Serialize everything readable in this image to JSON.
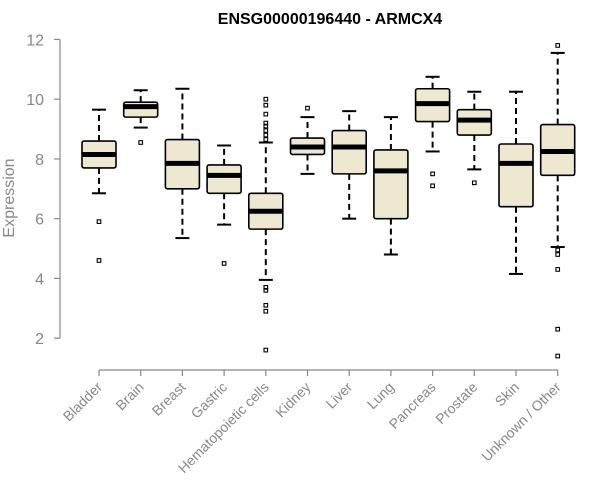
{
  "chart_data": {
    "type": "boxplot",
    "title": "ENSG00000196440 - ARMCX4",
    "xlabel": "",
    "ylabel": "Expression",
    "ylim": [
      1.0,
      12.25
    ],
    "yticks": [
      2,
      4,
      6,
      8,
      10,
      12
    ],
    "grid": false,
    "box_fill": "#eee8d0",
    "categories": [
      "Bladder",
      "Brain",
      "Breast",
      "Gastric",
      "Hematopoietic cells",
      "Kidney",
      "Liver",
      "Lung",
      "Pancreas",
      "Prostate",
      "Skin",
      "Unknown / Other"
    ],
    "series": [
      {
        "name": "Bladder",
        "whisker_low": 6.85,
        "q1": 7.7,
        "median": 8.15,
        "q3": 8.6,
        "whisker_high": 9.65,
        "outliers": [
          5.9,
          4.6
        ]
      },
      {
        "name": "Brain",
        "whisker_low": 9.05,
        "q1": 9.4,
        "median": 9.75,
        "q3": 9.9,
        "whisker_high": 10.3,
        "outliers": [
          8.55
        ]
      },
      {
        "name": "Breast",
        "whisker_low": 5.35,
        "q1": 7.0,
        "median": 7.85,
        "q3": 8.65,
        "whisker_high": 10.35,
        "outliers": []
      },
      {
        "name": "Gastric",
        "whisker_low": 5.8,
        "q1": 6.85,
        "median": 7.45,
        "q3": 7.8,
        "whisker_high": 8.45,
        "outliers": [
          4.5
        ]
      },
      {
        "name": "Hematopoietic cells",
        "whisker_low": 3.95,
        "q1": 5.65,
        "median": 6.25,
        "q3": 6.85,
        "whisker_high": 8.55,
        "outliers": [
          8.65,
          8.8,
          8.95,
          9.1,
          9.2,
          9.5,
          9.8,
          10.0,
          3.7,
          3.6,
          3.1,
          2.9,
          1.6
        ]
      },
      {
        "name": "Kidney",
        "whisker_low": 7.5,
        "q1": 8.15,
        "median": 8.4,
        "q3": 8.7,
        "whisker_high": 9.4,
        "outliers": [
          9.7
        ]
      },
      {
        "name": "Liver",
        "whisker_low": 6.0,
        "q1": 7.5,
        "median": 8.4,
        "q3": 8.95,
        "whisker_high": 9.6,
        "outliers": []
      },
      {
        "name": "Lung",
        "whisker_low": 4.8,
        "q1": 6.0,
        "median": 7.6,
        "q3": 8.3,
        "whisker_high": 9.4,
        "outliers": []
      },
      {
        "name": "Pancreas",
        "whisker_low": 8.25,
        "q1": 9.25,
        "median": 9.85,
        "q3": 10.35,
        "whisker_high": 10.75,
        "outliers": [
          7.5,
          7.1
        ]
      },
      {
        "name": "Prostate",
        "whisker_low": 7.65,
        "q1": 8.8,
        "median": 9.3,
        "q3": 9.65,
        "whisker_high": 10.25,
        "outliers": [
          7.2
        ]
      },
      {
        "name": "Skin",
        "whisker_low": 4.15,
        "q1": 6.4,
        "median": 7.85,
        "q3": 8.5,
        "whisker_high": 10.25,
        "outliers": []
      },
      {
        "name": "Unknown / Other",
        "whisker_low": 5.05,
        "q1": 7.45,
        "median": 8.25,
        "q3": 9.15,
        "whisker_high": 11.55,
        "outliers": [
          11.8,
          4.95,
          4.8,
          4.3,
          2.3,
          1.4
        ]
      }
    ]
  }
}
